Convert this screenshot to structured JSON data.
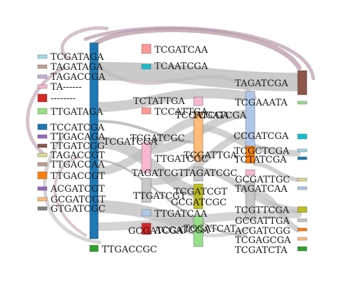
{
  "colors": {
    "link_gray": "#bdbdbd",
    "link_mauve": "#b89aaa",
    "label": "#1a1a1a"
  },
  "nodes": [
    {
      "id": "n01",
      "label": "TCGATAGA",
      "color": "#9edae5"
    },
    {
      "id": "n02",
      "label": "TAGATAGA",
      "color": "#c49c94"
    },
    {
      "id": "n03",
      "label": "TAGACCGA",
      "color": "#c5b0d5"
    },
    {
      "id": "n04",
      "label": "TA------",
      "color": "#f7b6d2"
    },
    {
      "id": "n05",
      "label": "--------",
      "color": "#d62728"
    },
    {
      "id": "n06",
      "label": "TTGATAGA",
      "color": "#98df8a"
    },
    {
      "id": "n07",
      "label": "TCCATCGA",
      "color": "#1f77b4"
    },
    {
      "id": "n08",
      "label": "TTGACAGA",
      "color": "#9467bd"
    },
    {
      "id": "n09",
      "label": "TTGATCGG",
      "color": "#8c564b"
    },
    {
      "id": "n10",
      "label": "TAGACCGT",
      "color": "#dbdb8d"
    },
    {
      "id": "n11",
      "label": "TTGACCAA",
      "color": "#c49c94"
    },
    {
      "id": "n12",
      "label": "TTGACCGT",
      "color": "#ff7f0e"
    },
    {
      "id": "n13",
      "label": "ACGATCGT",
      "color": "#9467bd"
    },
    {
      "id": "n14",
      "label": "GCGATCGT",
      "color": "#ffbb78"
    },
    {
      "id": "n15",
      "label": "GTGATCGC",
      "color": "#7f7f7f"
    },
    {
      "id": "n16",
      "label": "TTGACCGC",
      "color": "#2ca02c"
    },
    {
      "id": "n17",
      "label": "TCGATCAA",
      "color": "#ff9896"
    },
    {
      "id": "n18",
      "label": "TCAATCGA",
      "color": "#17becf"
    },
    {
      "id": "n19",
      "label": "TCTATTGA",
      "color": "#f7b6d2"
    },
    {
      "id": "n20",
      "label": "TCCATTGA",
      "color": "#ff9896"
    },
    {
      "id": "n21",
      "label": "TCGATCGA",
      "color": "#f7b6d2"
    },
    {
      "id": "n22",
      "label": "TCGATCGC",
      "color": "#c7c7c7"
    },
    {
      "id": "n23",
      "label": "TTGATCGC",
      "color": "#c7c7c7"
    },
    {
      "id": "n24",
      "label": "TAGATCGT",
      "color": "#c7c7c7"
    },
    {
      "id": "n25",
      "label": "TTGATCGT",
      "color": "#c7c7c7"
    },
    {
      "id": "n26",
      "label": "TTGATCAA",
      "color": "#aec7e8"
    },
    {
      "id": "n27",
      "label": "ACGATCGA",
      "color": "#d62728"
    },
    {
      "id": "n28",
      "label": "GCGATCGA",
      "color": "#c7c7c7"
    },
    {
      "id": "n29",
      "label": "TCCATCGA",
      "color": "#ff9896"
    },
    {
      "id": "n30",
      "label": "TCGATTGA",
      "color": "#ffbb78"
    },
    {
      "id": "n31",
      "label": "TAGATCGC",
      "color": "#c7c7c7"
    },
    {
      "id": "n32",
      "label": "TCGATCGT",
      "color": "#bcbd22"
    },
    {
      "id": "n33",
      "label": "GCGATCGC",
      "color": "#dbdb8d"
    },
    {
      "id": "n34",
      "label": "TCGATCAT",
      "color": "#98df8a"
    },
    {
      "id": "n35",
      "label": "TAGATCGA",
      "color": "#8c564b"
    },
    {
      "id": "n36",
      "label": "TCGAAATA",
      "color": "#98df8a"
    },
    {
      "id": "n37",
      "label": "CCGATCGA",
      "color": "#17becf"
    },
    {
      "id": "n38",
      "label": "TCGCTCGA",
      "color": "#9edae5"
    },
    {
      "id": "n39",
      "label": "TCTATCGA",
      "color": "#1f77b4"
    },
    {
      "id": "n40",
      "label": "GCGATTGC",
      "color": "#dbdb8d"
    },
    {
      "id": "n41",
      "label": "TAGATCAA",
      "color": "#aec7e8"
    },
    {
      "id": "n42",
      "label": "TCGTTCGA",
      "color": "#bcbd22"
    },
    {
      "id": "n43",
      "label": "GCGATTGA",
      "color": "#c7c7c7"
    },
    {
      "id": "n44",
      "label": "ACGATCGG",
      "color": "#ff7f0e"
    },
    {
      "id": "n45",
      "label": "TCGAGCGA",
      "color": "#ffbb78"
    },
    {
      "id": "n46",
      "label": "TCGATCTA",
      "color": "#2ca02c"
    },
    {
      "id": "n47",
      "label": "TCCATCGA",
      "color": "#1f77b4"
    },
    {
      "id": "n48",
      "label": "TCGATCGA",
      "color": "#aec7e8"
    },
    {
      "id": "n49",
      "label": "TCGATCGA",
      "color": "#ffbb78"
    },
    {
      "id": "n50",
      "label": "TCGATCGA",
      "color": "#f7b6d2"
    }
  ]
}
